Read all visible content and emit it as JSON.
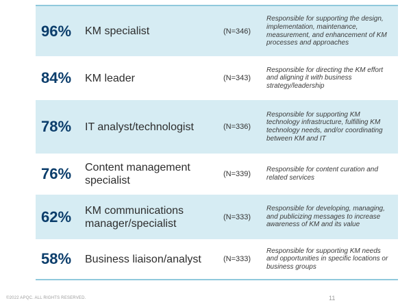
{
  "rows": [
    {
      "percent": "96%",
      "role": "KM specialist",
      "n": "(N=346)",
      "description": "Responsible for supporting the design, implementation, maintenance, measurement, and enhancement of KM processes and approaches",
      "shaded": true
    },
    {
      "percent": "84%",
      "role": "KM leader",
      "n": "(N=343)",
      "description": "Responsible for directing the KM effort and aligning it with business strategy/leadership",
      "shaded": false
    },
    {
      "percent": "78%",
      "role": "IT analyst/technologist",
      "n": "(N=336)",
      "description": "Responsible for supporting KM technology infrastructure, fulfilling KM technology needs, and/or coordinating between KM and IT",
      "shaded": true
    },
    {
      "percent": "76%",
      "role": "Content management specialist",
      "n": "(N=339)",
      "description": "Responsible for content curation and related services",
      "shaded": false
    },
    {
      "percent": "62%",
      "role": "KM communications manager/specialist",
      "n": "(N=333)",
      "description": "Responsible for developing, managing, and publicizing messages to increase awareness of KM and its value",
      "shaded": true
    },
    {
      "percent": "58%",
      "role": "Business liaison/analyst",
      "n": "(N=333)",
      "description": "Responsible for supporting KM needs and opportunities in specific locations or business groups",
      "shaded": false
    }
  ],
  "footer": {
    "copyright": "©2022 APQC. ALL RIGHTS RESERVED.",
    "page_number": "11"
  },
  "colors": {
    "shaded_row": "#d6ecf3",
    "percent_text": "#0b3d6b",
    "border": "#8fc9dc"
  }
}
